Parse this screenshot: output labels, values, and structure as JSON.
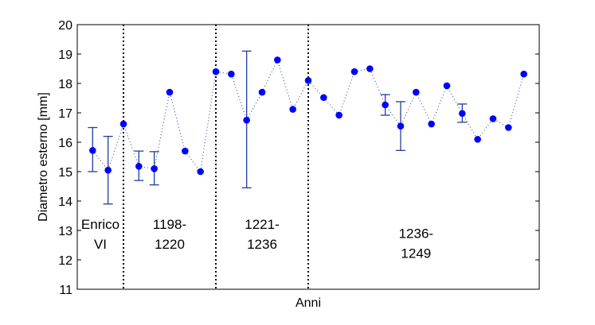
{
  "chart_data": {
    "type": "scatter",
    "title": "",
    "xlabel": "Anni",
    "ylabel": "Diametro esterno [mm]",
    "ylim": [
      11,
      20
    ],
    "yticks": [
      11,
      12,
      13,
      14,
      15,
      16,
      17,
      18,
      19,
      20
    ],
    "xlim": [
      0,
      30
    ],
    "grid": false,
    "line_style": "dotted",
    "marker_color": "#0000ff",
    "errorbar_color": "#1f3fa0",
    "divider_color": "#000000",
    "series": [
      {
        "x": [
          1,
          2,
          3,
          4,
          5,
          6,
          7,
          8,
          9,
          10,
          11,
          12,
          13,
          14,
          15,
          16,
          17,
          18,
          19,
          20,
          21,
          22,
          23,
          24,
          25,
          26,
          27,
          28,
          29
        ],
        "y": [
          15.72,
          15.05,
          16.62,
          15.18,
          15.1,
          17.7,
          15.7,
          15.0,
          18.4,
          18.32,
          16.75,
          17.7,
          18.8,
          17.12,
          18.1,
          17.52,
          16.92,
          18.4,
          18.5,
          17.27,
          16.55,
          17.7,
          16.62,
          17.92,
          16.98,
          16.1,
          16.8,
          16.5,
          18.32
        ]
      }
    ],
    "error_bars": [
      {
        "x": 1,
        "low": 15.0,
        "high": 16.5
      },
      {
        "x": 2,
        "low": 13.9,
        "high": 16.2
      },
      {
        "x": 4,
        "low": 14.7,
        "high": 15.7
      },
      {
        "x": 5,
        "low": 14.55,
        "high": 15.68
      },
      {
        "x": 11,
        "low": 14.45,
        "high": 19.1
      },
      {
        "x": 20,
        "low": 16.92,
        "high": 17.62
      },
      {
        "x": 21,
        "low": 15.72,
        "high": 17.38
      },
      {
        "x": 25,
        "low": 16.68,
        "high": 17.3
      }
    ],
    "dividers": [
      3,
      9,
      15
    ],
    "periods": [
      {
        "lines": [
          "Enrico",
          "VI"
        ],
        "x_center": 1.5,
        "y_top": 13.05
      },
      {
        "lines": [
          "1198-",
          "1220"
        ],
        "x_center": 6.0,
        "y_top": 13.05
      },
      {
        "lines": [
          "1221-",
          "1236"
        ],
        "x_center": 12.0,
        "y_top": 13.05
      },
      {
        "lines": [
          "1236-",
          "1249"
        ],
        "x_center": 22.0,
        "y_top": 12.75
      }
    ]
  }
}
